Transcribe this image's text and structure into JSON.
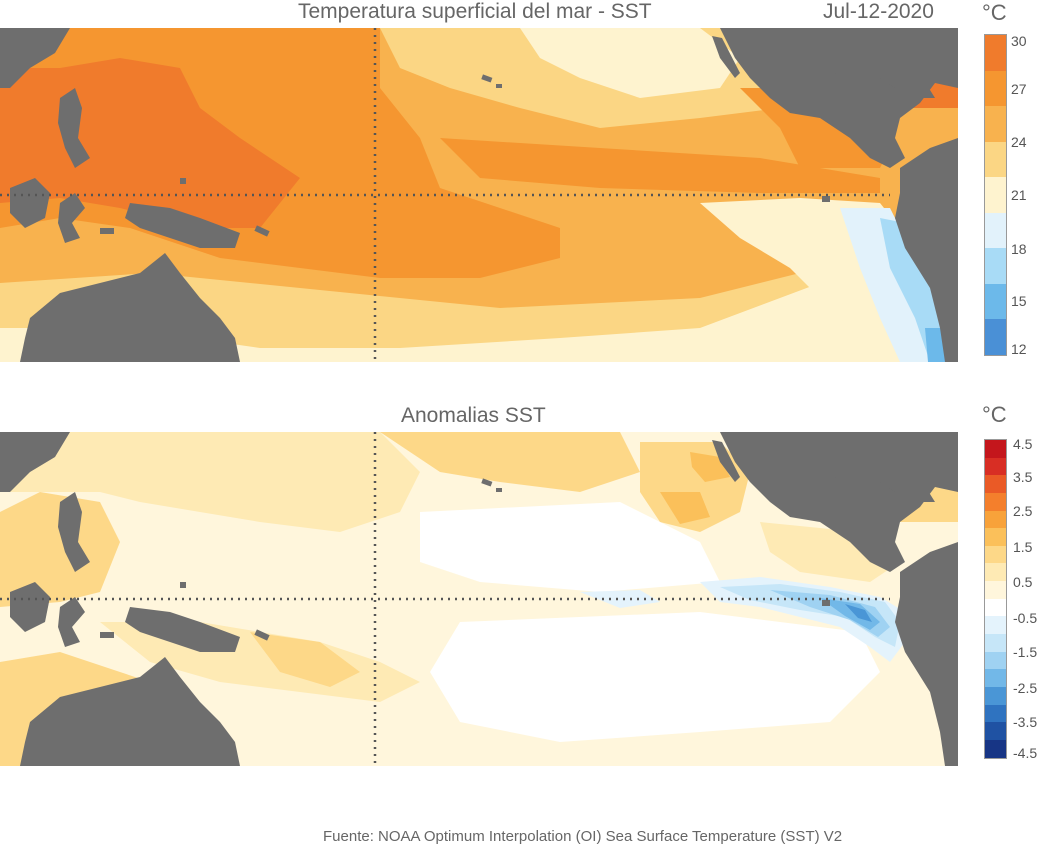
{
  "top": {
    "title": "Temperatura superficial del mar - SST",
    "date": "Jul-12-2020",
    "unit": "°C",
    "colorbar": {
      "ticks": [
        "30",
        "27",
        "24",
        "21",
        "18",
        "15",
        "12"
      ],
      "colors": [
        "#f07b2c",
        "#f59630",
        "#f8b24e",
        "#fbd684",
        "#fef3cf",
        "#e2f2fb",
        "#a8dbf6",
        "#6cb9ea",
        "#4a90d6"
      ]
    }
  },
  "bottom": {
    "title": "Anomalias SST",
    "unit": "°C",
    "colorbar": {
      "ticks": [
        "4.5",
        "3.5",
        "2.5",
        "1.5",
        "0.5",
        "-0.5",
        "-1.5",
        "-2.5",
        "-3.5",
        "-4.5"
      ],
      "colors": [
        "#c4161c",
        "#d82e24",
        "#ea5a26",
        "#f47f2c",
        "#f8a23a",
        "#fbc05a",
        "#fdd888",
        "#feeab4",
        "#fff6dc",
        "#ffffff",
        "#e4f3fc",
        "#c6e6f8",
        "#9fd2f2",
        "#72b8e8",
        "#4a96d6",
        "#2f73c0",
        "#1f52a3",
        "#173585"
      ]
    }
  },
  "source": "Fuente: NOAA Optimum Interpolation (OI) Sea Surface Temperature (SST) V2",
  "colors": {
    "land": "#6e6e6e",
    "grid": "#555555"
  }
}
